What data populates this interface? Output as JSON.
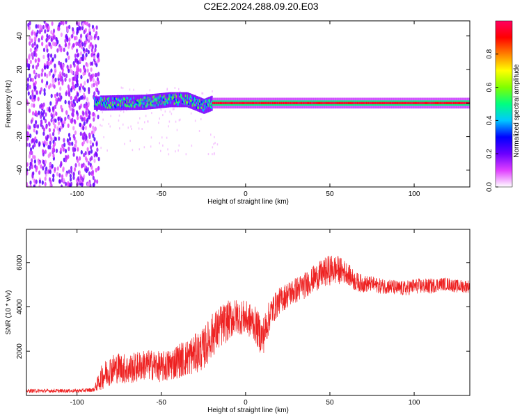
{
  "title": "C2E2.2024.288.09.20.E03",
  "chart_data": [
    {
      "type": "heatmap",
      "xlabel": "Height of straight line (km)",
      "ylabel": "Frequency (Hz)",
      "xlim": [
        -130,
        133
      ],
      "ylim": [
        -50,
        49
      ],
      "xticks": [
        -100,
        -50,
        0,
        50,
        100
      ],
      "yticks": [
        -40,
        -20,
        0,
        20,
        40
      ],
      "colorbar": {
        "label": "Normalized spectral amplitude",
        "range": [
          0.0,
          1.0
        ],
        "ticks": [
          0.0,
          0.2,
          0.4,
          0.6,
          0.8
        ],
        "colors": [
          "#ffffff",
          "#e040ff",
          "#6a00ff",
          "#0000ff",
          "#00c8ff",
          "#00ff80",
          "#80ff00",
          "#ffff00",
          "#ff8000",
          "#ff0000",
          "#ff0060"
        ]
      },
      "regions": [
        {
          "x_range": [
            -130,
            -87
          ],
          "freq_range": [
            -50,
            49
          ],
          "amplitude": 0.1
        },
        {
          "x_range": [
            -87,
            -20
          ],
          "freq_range": [
            -5,
            5
          ],
          "amplitude": 0.45
        },
        {
          "x_range": [
            -20,
            133
          ],
          "freq_range": [
            -1,
            1
          ],
          "amplitude": 0.95
        }
      ],
      "center_line": [
        {
          "x": -85,
          "freq": 0
        },
        {
          "x": -60,
          "freq": 0.5
        },
        {
          "x": -45,
          "freq": 2
        },
        {
          "x": -35,
          "freq": 2
        },
        {
          "x": -25,
          "freq": -2
        },
        {
          "x": -20,
          "freq": 0
        },
        {
          "x": 133,
          "freq": 0
        }
      ]
    },
    {
      "type": "line",
      "xlabel": "Height of straight line (km)",
      "ylabel": "SNR (10 * v/v)",
      "xlim": [
        -130,
        133
      ],
      "ylim": [
        0,
        7500
      ],
      "xticks": [
        -100,
        -50,
        0,
        50,
        100
      ],
      "yticks": [
        2000,
        4000,
        6000
      ],
      "color": "#ee2222",
      "series": [
        {
          "x": [
            -130,
            -120,
            -110,
            -100,
            -90,
            -85,
            -80,
            -75,
            -70,
            -65,
            -60,
            -55,
            -50,
            -45,
            -40,
            -35,
            -30,
            -25,
            -20,
            -15,
            -10,
            -5,
            0,
            5,
            10,
            15,
            20,
            25,
            30,
            35,
            40,
            45,
            50,
            55,
            60,
            65,
            70,
            75,
            80,
            85,
            90,
            95,
            100,
            105,
            110,
            115,
            120,
            125,
            133
          ],
          "y": [
            200,
            200,
            200,
            200,
            250,
            800,
            1100,
            1200,
            1100,
            1200,
            1300,
            1300,
            1200,
            1300,
            1500,
            1600,
            1800,
            2000,
            2600,
            3000,
            3300,
            3500,
            3400,
            3200,
            2500,
            3700,
            4200,
            4500,
            4700,
            4900,
            5200,
            5400,
            5600,
            5600,
            5500,
            5100,
            5000,
            5000,
            4900,
            4900,
            4800,
            4800,
            4900,
            4900,
            4900,
            5000,
            5000,
            4900,
            4900
          ],
          "noise": [
            80,
            80,
            80,
            80,
            100,
            600,
            700,
            700,
            700,
            700,
            700,
            700,
            700,
            750,
            800,
            850,
            900,
            950,
            1000,
            1000,
            900,
            800,
            800,
            800,
            900,
            700,
            600,
            600,
            600,
            600,
            600,
            650,
            700,
            650,
            500,
            450,
            400,
            350,
            350,
            350,
            350,
            350,
            350,
            350,
            350,
            300,
            300,
            300,
            300
          ]
        }
      ]
    }
  ]
}
